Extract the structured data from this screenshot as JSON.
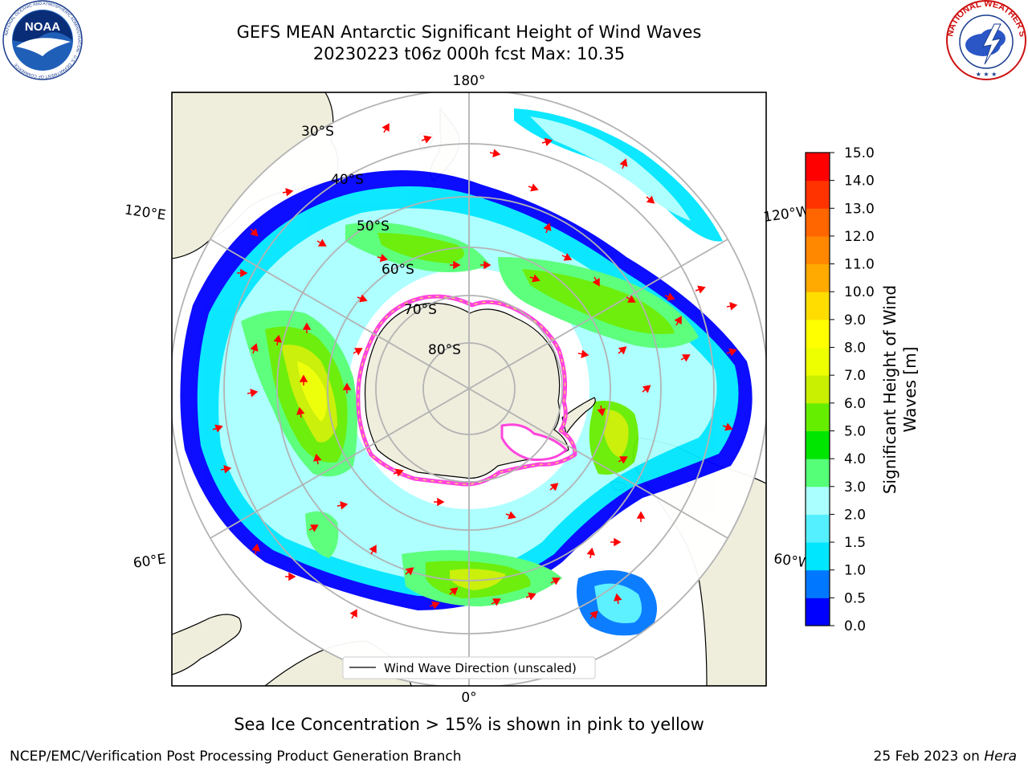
{
  "header": {
    "title_line1": "GEFS MEAN Antarctic Significant Height of Wind Waves",
    "title_line2": "20230223 t06z 000h fcst   Max: 10.35"
  },
  "map": {
    "projection": "south-polar-stereographic",
    "land_color": "#efeedd",
    "ocean_color": "#ffffff",
    "grid_color": "#b3b3b3",
    "longitude_labels": [
      "180°",
      "120°E",
      "120°W",
      "60°E",
      "60°W",
      "0°"
    ],
    "latitude_labels": [
      "30°S",
      "40°S",
      "50°S",
      "60°S",
      "70°S",
      "80°S"
    ],
    "legend_label": "Wind Wave Direction (unscaled)",
    "arrow_color": "#ff0000",
    "ice_edge_colors": [
      "#ff44dd",
      "#ffee55"
    ]
  },
  "colorbar": {
    "label": "Significant Height of Wind Waves [m]",
    "ticks": [
      "0.0",
      "0.5",
      "1.0",
      "1.5",
      "2.0",
      "3.0",
      "4.0",
      "5.0",
      "6.0",
      "7.0",
      "8.0",
      "9.0",
      "10.0",
      "11.0",
      "12.0",
      "13.0",
      "14.0",
      "15.0"
    ],
    "colors": [
      "#0000ff",
      "#0077ff",
      "#00e6ff",
      "#55f0ff",
      "#aaffff",
      "#55ff77",
      "#00e600",
      "#66ee00",
      "#c8f000",
      "#eeff00",
      "#ffff00",
      "#ffdd00",
      "#ffaa00",
      "#ff8800",
      "#ff6600",
      "#ff3300",
      "#ff0000"
    ]
  },
  "caption": "Sea Ice Concentration > 15% is shown in pink to yellow",
  "footer": {
    "left": "NCEP/EMC/Verification Post Processing Product Generation Branch",
    "right_date": "25 Feb 2023 on ",
    "right_host": "Hera"
  },
  "logos": {
    "noaa_text": "NOAA",
    "noaa_ring_text": "NATIONAL OCEANIC AND ATMOSPHERIC ADMINISTRATION · U.S. DEPARTMENT OF COMMERCE",
    "nws_ring_text": "NATIONAL WEATHER SERVICE"
  }
}
